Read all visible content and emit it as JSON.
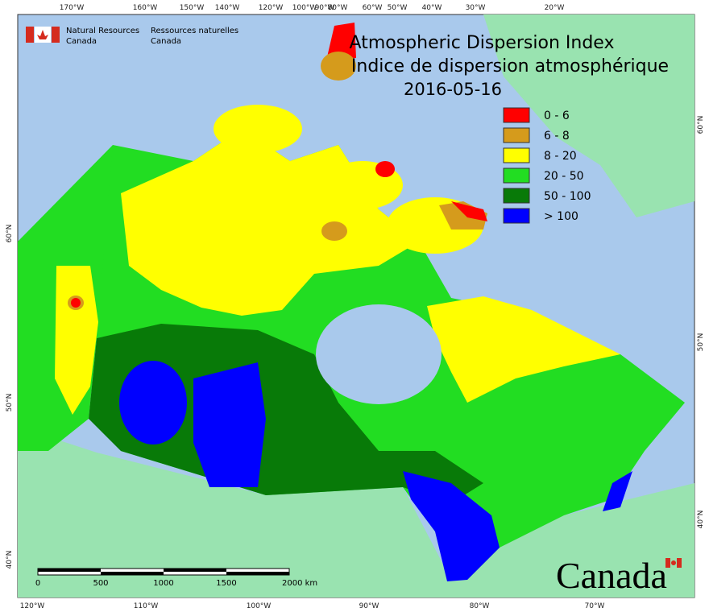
{
  "header": {
    "agency_en": [
      "Natural Resources",
      "Canada"
    ],
    "agency_fr": [
      "Ressources naturelles",
      "Canada"
    ],
    "title_en": "Atmospheric Dispersion Index",
    "title_fr": "Indice de dispersion atmosphérique",
    "date": "2016-05-16"
  },
  "legend": [
    {
      "label": "0 - 6",
      "color": "#ff0000"
    },
    {
      "label": "6 - 8",
      "color": "#d59b1c"
    },
    {
      "label": "8 - 20",
      "color": "#ffff00"
    },
    {
      "label": "20 - 50",
      "color": "#22dd22"
    },
    {
      "label": "50 - 100",
      "color": "#087a08"
    },
    {
      "label": "> 100",
      "color": "#0000ff"
    }
  ],
  "graticule": {
    "top": [
      "170°W",
      "160°W",
      "150°W",
      "140°W",
      "120°W",
      "100°W",
      "90°W",
      "80°W",
      "60°W",
      "50°W",
      "40°W",
      "30°W",
      "20°W"
    ],
    "bottom": [
      "120°W",
      "110°W",
      "100°W",
      "90°W",
      "80°W",
      "70°W"
    ],
    "left": [
      "60°N",
      "50°N",
      "40°N"
    ],
    "right": [
      "60°N",
      "50°N",
      "40°N"
    ]
  },
  "scale_bar": {
    "labels": [
      "0",
      "500",
      "1000",
      "1500",
      "2000 km"
    ]
  },
  "wordmark": "Canada"
}
